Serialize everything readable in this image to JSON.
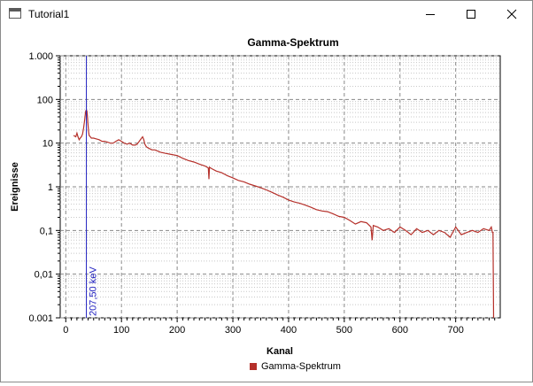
{
  "window": {
    "title": "Tutorial1"
  },
  "chart_data": {
    "type": "line",
    "title": "Gamma-Spektrum",
    "xlabel": "Kanal",
    "ylabel": "Ereignisse",
    "xlim": [
      -10,
      780
    ],
    "ylim": [
      0.001,
      1000
    ],
    "yscale": "log",
    "xticks": [
      0,
      100,
      200,
      300,
      400,
      500,
      600,
      700
    ],
    "xtick_labels": [
      "0",
      "100",
      "200",
      "300",
      "400",
      "500",
      "600",
      "700"
    ],
    "yticks": [
      0.001,
      0.01,
      0.1,
      1,
      10,
      100,
      1000
    ],
    "ytick_labels": [
      "0.001",
      "0,01",
      "0,1",
      "1",
      "10",
      "100",
      "1.000"
    ],
    "grid": true,
    "legend_position": "bottom",
    "series": [
      {
        "name": "Gamma-Spektrum",
        "color": "#b5302a",
        "x": [
          14,
          18,
          20,
          22,
          24,
          26,
          28,
          30,
          32,
          34,
          35,
          36,
          37,
          38,
          39,
          40,
          41,
          42,
          44,
          46,
          50,
          55,
          60,
          65,
          70,
          75,
          80,
          85,
          90,
          95,
          100,
          105,
          110,
          115,
          120,
          125,
          128,
          132,
          136,
          138,
          140,
          142,
          144,
          146,
          150,
          155,
          160,
          170,
          180,
          190,
          200,
          210,
          220,
          230,
          240,
          250,
          256,
          257,
          258,
          262,
          270,
          280,
          290,
          300,
          310,
          320,
          330,
          340,
          350,
          360,
          370,
          380,
          390,
          400,
          410,
          420,
          430,
          440,
          450,
          460,
          470,
          480,
          490,
          500,
          510,
          520,
          530,
          540,
          548,
          550,
          552,
          560,
          570,
          580,
          590,
          600,
          610,
          620,
          630,
          640,
          650,
          660,
          670,
          680,
          690,
          700,
          710,
          720,
          730,
          740,
          750,
          760,
          764,
          766,
          767,
          768
        ],
        "y": [
          15,
          14,
          17,
          14,
          12,
          13,
          14,
          16,
          22,
          35,
          45,
          55,
          57,
          54,
          40,
          25,
          18,
          15,
          14,
          13,
          13,
          12.5,
          12,
          11,
          11,
          10.5,
          10,
          10,
          11,
          12,
          11,
          10,
          9.5,
          10,
          9,
          9,
          9.5,
          11,
          13,
          14,
          12,
          9.5,
          8.5,
          8,
          7.5,
          7,
          7,
          6.2,
          5.8,
          5.5,
          5.2,
          4.5,
          4,
          3.7,
          3.3,
          3,
          2.7,
          1.5,
          2.8,
          2.6,
          2.3,
          2.1,
          1.8,
          1.6,
          1.4,
          1.3,
          1.15,
          1.05,
          0.95,
          0.85,
          0.75,
          0.65,
          0.58,
          0.5,
          0.45,
          0.42,
          0.38,
          0.34,
          0.3,
          0.28,
          0.27,
          0.24,
          0.21,
          0.2,
          0.17,
          0.14,
          0.16,
          0.15,
          0.12,
          0.06,
          0.13,
          0.12,
          0.1,
          0.11,
          0.09,
          0.12,
          0.1,
          0.08,
          0.11,
          0.09,
          0.1,
          0.08,
          0.1,
          0.09,
          0.07,
          0.12,
          0.08,
          0.09,
          0.1,
          0.09,
          0.11,
          0.1,
          0.12,
          0.09,
          0.09,
          0.001
        ]
      }
    ],
    "marker": {
      "x": 37,
      "label": "207,50 keV",
      "color": "#2020c0"
    }
  }
}
